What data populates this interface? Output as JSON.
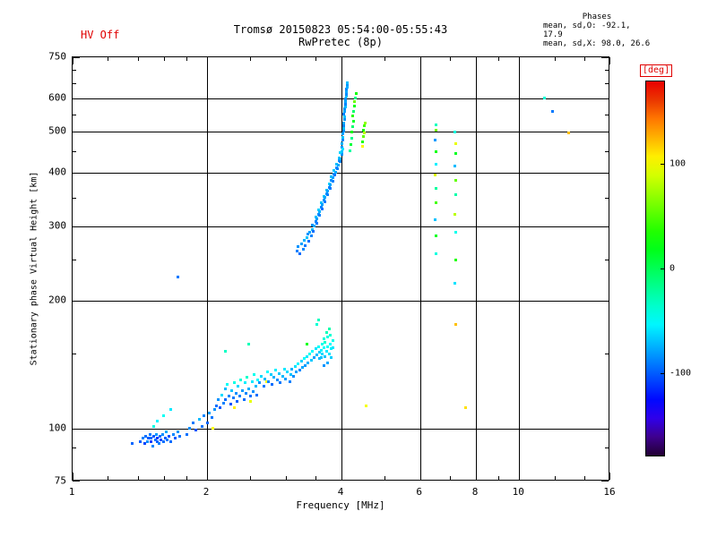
{
  "header": {
    "hv_status": "HV Off",
    "phases_label": "Phases",
    "phases_line1": "mean, sd,O: -92.1, 17.9",
    "phases_line2": "mean, sd,X:  98.0, 26.6"
  },
  "chart_data": {
    "type": "scatter",
    "title": "Tromsø 20150823 05:54:00-05:55:43",
    "subtitle": "RwPretec (8p)",
    "xlabel": "Frequency [MHz]",
    "ylabel": "Stationary phase Virtual Height [km]",
    "x_scale": "log",
    "y_scale": "log",
    "xlim": [
      1,
      16
    ],
    "ylim": [
      75,
      750
    ],
    "x_ticks": [
      1,
      2,
      4,
      6,
      8,
      10,
      16
    ],
    "y_ticks": [
      75,
      100,
      200,
      300,
      400,
      500,
      600,
      750
    ],
    "x_minor_ticks": [
      1.2,
      1.4,
      1.6,
      1.8,
      2.5,
      3,
      3.5,
      5,
      7,
      9,
      12,
      14
    ],
    "y_minor_ticks": [
      90,
      150,
      250,
      350,
      450,
      550,
      650,
      700
    ],
    "x_gridlines": [
      2,
      4,
      6,
      8,
      10
    ],
    "y_gridlines": [
      100,
      200,
      300,
      400,
      500,
      600
    ],
    "colorbar": {
      "label": "[deg]",
      "ticks": [
        100,
        0,
        -100
      ],
      "range": [
        -180,
        180
      ]
    },
    "points": [
      [
        1.36,
        92,
        -98
      ],
      [
        1.42,
        93,
        -100
      ],
      [
        1.44,
        95,
        -90
      ],
      [
        1.45,
        92,
        -108
      ],
      [
        1.46,
        96,
        -95
      ],
      [
        1.47,
        93,
        -85
      ],
      [
        1.48,
        95,
        -100
      ],
      [
        1.49,
        97,
        -92
      ],
      [
        1.5,
        93,
        -110
      ],
      [
        1.5,
        95,
        -98
      ],
      [
        1.51,
        91,
        -88
      ],
      [
        1.52,
        96,
        -103
      ],
      [
        1.53,
        94,
        -95
      ],
      [
        1.54,
        97,
        -82
      ],
      [
        1.55,
        93,
        -100
      ],
      [
        1.55,
        95,
        -112
      ],
      [
        1.56,
        92,
        -90
      ],
      [
        1.57,
        96,
        -97
      ],
      [
        1.58,
        94,
        -105
      ],
      [
        1.59,
        97,
        -86
      ],
      [
        1.6,
        93,
        -95
      ],
      [
        1.61,
        95,
        -100
      ],
      [
        1.62,
        98,
        -78
      ],
      [
        1.63,
        94,
        -92
      ],
      [
        1.64,
        96,
        -104
      ],
      [
        1.66,
        93,
        -96
      ],
      [
        1.68,
        97,
        -88
      ],
      [
        1.7,
        95,
        -100
      ],
      [
        1.72,
        98,
        -84
      ],
      [
        1.74,
        96,
        -94
      ],
      [
        1.55,
        104,
        -55
      ],
      [
        1.6,
        107,
        -48
      ],
      [
        1.66,
        111,
        -58
      ],
      [
        1.52,
        101,
        -42
      ],
      [
        1.72,
        228,
        -92
      ],
      [
        1.8,
        97,
        -95
      ],
      [
        1.83,
        100,
        -86
      ],
      [
        1.86,
        103,
        -92
      ],
      [
        1.89,
        99,
        -104
      ],
      [
        1.92,
        105,
        -72
      ],
      [
        1.95,
        101,
        -95
      ],
      [
        1.97,
        107,
        -88
      ],
      [
        2.0,
        103,
        -98
      ],
      [
        2.02,
        109,
        -80
      ],
      [
        2.05,
        106,
        -93
      ],
      [
        2.06,
        100,
        102
      ],
      [
        2.08,
        111,
        -85
      ],
      [
        2.1,
        113,
        -95
      ],
      [
        2.12,
        117,
        -84
      ],
      [
        2.14,
        112,
        -102
      ],
      [
        2.16,
        120,
        -62
      ],
      [
        2.18,
        115,
        -90
      ],
      [
        2.2,
        124,
        -72
      ],
      [
        2.2,
        117,
        -96
      ],
      [
        2.22,
        127,
        -48
      ],
      [
        2.24,
        119,
        -88
      ],
      [
        2.26,
        114,
        -104
      ],
      [
        2.27,
        123,
        -70
      ],
      [
        2.29,
        118,
        -92
      ],
      [
        2.3,
        128,
        -44
      ],
      [
        2.3,
        112,
        108
      ],
      [
        2.32,
        121,
        -86
      ],
      [
        2.34,
        116,
        -100
      ],
      [
        2.35,
        126,
        -64
      ],
      [
        2.37,
        119,
        -90
      ],
      [
        2.38,
        130,
        -40
      ],
      [
        2.4,
        123,
        -82
      ],
      [
        2.42,
        117,
        -96
      ],
      [
        2.43,
        128,
        -56
      ],
      [
        2.45,
        121,
        -88
      ],
      [
        2.46,
        132,
        -36
      ],
      [
        2.48,
        124,
        -76
      ],
      [
        2.5,
        119,
        -94
      ],
      [
        2.5,
        116,
        96
      ],
      [
        2.52,
        129,
        -58
      ],
      [
        2.54,
        122,
        -86
      ],
      [
        2.55,
        134,
        -46
      ],
      [
        2.57,
        126,
        -72
      ],
      [
        2.59,
        120,
        -95
      ],
      [
        2.6,
        130,
        -52
      ],
      [
        2.2,
        152,
        -34
      ],
      [
        2.48,
        158,
        -30
      ],
      [
        2.62,
        128,
        -84
      ],
      [
        2.65,
        133,
        -62
      ],
      [
        2.68,
        126,
        -92
      ],
      [
        2.7,
        131,
        -72
      ],
      [
        2.72,
        129,
        104
      ],
      [
        2.73,
        136,
        -52
      ],
      [
        2.75,
        129,
        -88
      ],
      [
        2.78,
        134,
        -66
      ],
      [
        2.8,
        127,
        -96
      ],
      [
        2.82,
        132,
        -76
      ],
      [
        2.85,
        137,
        -56
      ],
      [
        2.88,
        130,
        -86
      ],
      [
        2.9,
        135,
        -68
      ],
      [
        2.92,
        128,
        -93
      ],
      [
        2.95,
        133,
        -73
      ],
      [
        2.98,
        138,
        -58
      ],
      [
        3.0,
        131,
        -81
      ],
      [
        3.03,
        136,
        -63
      ],
      [
        3.06,
        129,
        -90
      ],
      [
        3.08,
        134,
        -70
      ],
      [
        3.1,
        138,
        -76
      ],
      [
        3.12,
        133,
        -86
      ],
      [
        3.15,
        140,
        -60
      ],
      [
        3.17,
        136,
        -80
      ],
      [
        3.2,
        142,
        -54
      ],
      [
        3.22,
        137,
        -88
      ],
      [
        3.25,
        144,
        -66
      ],
      [
        3.27,
        139,
        -78
      ],
      [
        3.3,
        146,
        -50
      ],
      [
        3.32,
        141,
        -82
      ],
      [
        3.35,
        158,
        16
      ],
      [
        3.35,
        148,
        -58
      ],
      [
        3.37,
        143,
        -75
      ],
      [
        3.4,
        150,
        -46
      ],
      [
        3.42,
        145,
        -68
      ],
      [
        3.45,
        152,
        -52
      ],
      [
        3.47,
        147,
        -80
      ],
      [
        3.5,
        154,
        -60
      ],
      [
        3.52,
        176,
        -38
      ],
      [
        3.52,
        149,
        -72
      ],
      [
        3.55,
        156,
        -48
      ],
      [
        3.56,
        180,
        -32
      ],
      [
        3.57,
        151,
        -66
      ],
      [
        3.58,
        146,
        -72
      ],
      [
        3.6,
        153,
        -56
      ],
      [
        3.6,
        147,
        -70
      ],
      [
        3.62,
        158,
        -46
      ],
      [
        3.63,
        150,
        -62
      ],
      [
        3.65,
        155,
        -50
      ],
      [
        3.65,
        163,
        -40
      ],
      [
        3.67,
        148,
        -68
      ],
      [
        3.68,
        160,
        -36
      ],
      [
        3.7,
        152,
        -58
      ],
      [
        3.7,
        168,
        -30
      ],
      [
        3.72,
        156,
        -48
      ],
      [
        3.73,
        164,
        -42
      ],
      [
        3.75,
        150,
        -60
      ],
      [
        3.75,
        172,
        -26
      ],
      [
        3.77,
        158,
        -52
      ],
      [
        3.78,
        166,
        -38
      ],
      [
        3.8,
        154,
        -56
      ],
      [
        3.8,
        147,
        -66
      ],
      [
        3.82,
        161,
        -46
      ],
      [
        3.83,
        155,
        -58
      ],
      [
        3.72,
        143,
        -78
      ],
      [
        3.66,
        141,
        -84
      ],
      [
        3.18,
        262,
        -90
      ],
      [
        3.2,
        268,
        -84
      ],
      [
        3.22,
        258,
        -96
      ],
      [
        3.25,
        272,
        -80
      ],
      [
        3.28,
        265,
        -88
      ],
      [
        3.3,
        278,
        -74
      ],
      [
        3.32,
        270,
        -92
      ],
      [
        3.35,
        282,
        -70
      ],
      [
        3.36,
        288,
        -84
      ],
      [
        3.38,
        276,
        -95
      ],
      [
        3.4,
        290,
        -80
      ],
      [
        3.42,
        285,
        -88
      ],
      [
        3.44,
        295,
        -72
      ],
      [
        3.45,
        302,
        -84
      ],
      [
        3.46,
        292,
        -95
      ],
      [
        3.48,
        300,
        -78
      ],
      [
        3.5,
        308,
        -88
      ],
      [
        3.5,
        315,
        -70
      ],
      [
        3.52,
        305,
        -92
      ],
      [
        3.53,
        312,
        -80
      ],
      [
        3.55,
        320,
        -84
      ],
      [
        3.55,
        328,
        -66
      ],
      [
        3.57,
        318,
        -90
      ],
      [
        3.58,
        325,
        -75
      ],
      [
        3.6,
        332,
        -88
      ],
      [
        3.6,
        340,
        -70
      ],
      [
        3.62,
        330,
        -95
      ],
      [
        3.63,
        338,
        -80
      ],
      [
        3.65,
        345,
        -84
      ],
      [
        3.65,
        352,
        -68
      ],
      [
        3.67,
        342,
        -92
      ],
      [
        3.68,
        350,
        -78
      ],
      [
        3.7,
        358,
        -84
      ],
      [
        3.7,
        365,
        -70
      ],
      [
        3.72,
        355,
        -90
      ],
      [
        3.73,
        362,
        -80
      ],
      [
        3.75,
        370,
        -88
      ],
      [
        3.75,
        378,
        -64
      ],
      [
        3.77,
        368,
        -92
      ],
      [
        3.78,
        375,
        -78
      ],
      [
        3.8,
        385,
        -84
      ],
      [
        3.8,
        392,
        -70
      ],
      [
        3.82,
        382,
        -90
      ],
      [
        3.83,
        390,
        -80
      ],
      [
        3.85,
        398,
        -84
      ],
      [
        3.85,
        405,
        -68
      ],
      [
        3.87,
        395,
        -92
      ],
      [
        3.88,
        402,
        -78
      ],
      [
        3.9,
        412,
        -84
      ],
      [
        3.9,
        420,
        -70
      ],
      [
        3.92,
        410,
        -90
      ],
      [
        3.93,
        418,
        -78
      ],
      [
        3.95,
        428,
        -84
      ],
      [
        3.95,
        435,
        -68
      ],
      [
        3.97,
        425,
        -90
      ],
      [
        3.98,
        432,
        -76
      ],
      [
        4.0,
        442,
        -84
      ],
      [
        4.0,
        450,
        -70
      ],
      [
        4.0,
        460,
        -82
      ],
      [
        4.01,
        470,
        -74
      ],
      [
        4.02,
        478,
        -88
      ],
      [
        4.03,
        486,
        -70
      ],
      [
        4.03,
        494,
        -80
      ],
      [
        4.04,
        502,
        -86
      ],
      [
        4.05,
        510,
        -72
      ],
      [
        4.04,
        518,
        -88
      ],
      [
        4.05,
        526,
        -78
      ],
      [
        4.06,
        534,
        -84
      ],
      [
        4.06,
        542,
        -70
      ],
      [
        4.05,
        550,
        -90
      ],
      [
        4.07,
        558,
        -80
      ],
      [
        4.07,
        566,
        -86
      ],
      [
        4.08,
        574,
        -72
      ],
      [
        4.08,
        582,
        -88
      ],
      [
        4.09,
        590,
        -78
      ],
      [
        4.09,
        598,
        -84
      ],
      [
        4.1,
        606,
        -70
      ],
      [
        4.1,
        614,
        -86
      ],
      [
        4.11,
        622,
        -78
      ],
      [
        4.11,
        630,
        -88
      ],
      [
        4.12,
        638,
        -76
      ],
      [
        4.13,
        646,
        -84
      ],
      [
        4.13,
        654,
        -72
      ],
      [
        4.02,
        455,
        -60
      ],
      [
        3.98,
        448,
        -64
      ],
      [
        4.18,
        452,
        -24
      ],
      [
        4.2,
        468,
        8
      ],
      [
        4.22,
        484,
        -16
      ],
      [
        4.21,
        500,
        24
      ],
      [
        4.23,
        515,
        -8
      ],
      [
        4.25,
        530,
        14
      ],
      [
        4.24,
        545,
        38
      ],
      [
        4.26,
        560,
        -6
      ],
      [
        4.28,
        575,
        20
      ],
      [
        4.27,
        590,
        58
      ],
      [
        4.29,
        602,
        -14
      ],
      [
        4.31,
        616,
        28
      ],
      [
        4.45,
        475,
        32
      ],
      [
        4.47,
        488,
        55
      ],
      [
        4.5,
        497,
        82
      ],
      [
        4.48,
        506,
        22
      ],
      [
        4.5,
        516,
        46
      ],
      [
        4.52,
        526,
        70
      ],
      [
        4.46,
        462,
        105
      ],
      [
        6.5,
        258,
        -42
      ],
      [
        6.5,
        285,
        14
      ],
      [
        6.48,
        310,
        -70
      ],
      [
        6.52,
        340,
        46
      ],
      [
        6.5,
        368,
        -22
      ],
      [
        6.48,
        395,
        92
      ],
      [
        6.52,
        420,
        -56
      ],
      [
        6.5,
        450,
        24
      ],
      [
        6.48,
        478,
        -82
      ],
      [
        6.5,
        505,
        62
      ],
      [
        6.52,
        520,
        -32
      ],
      [
        7.2,
        176,
        122
      ],
      [
        7.18,
        220,
        -60
      ],
      [
        7.22,
        250,
        36
      ],
      [
        7.2,
        290,
        -46
      ],
      [
        7.18,
        320,
        82
      ],
      [
        7.22,
        355,
        -26
      ],
      [
        7.2,
        385,
        56
      ],
      [
        7.18,
        415,
        -72
      ],
      [
        7.22,
        445,
        16
      ],
      [
        7.2,
        470,
        96
      ],
      [
        7.18,
        500,
        -42
      ],
      [
        4.55,
        113,
        100
      ],
      [
        7.6,
        112,
        112
      ],
      [
        11.4,
        600,
        -40
      ],
      [
        11.9,
        560,
        -92
      ],
      [
        12.9,
        498,
        122
      ]
    ]
  }
}
